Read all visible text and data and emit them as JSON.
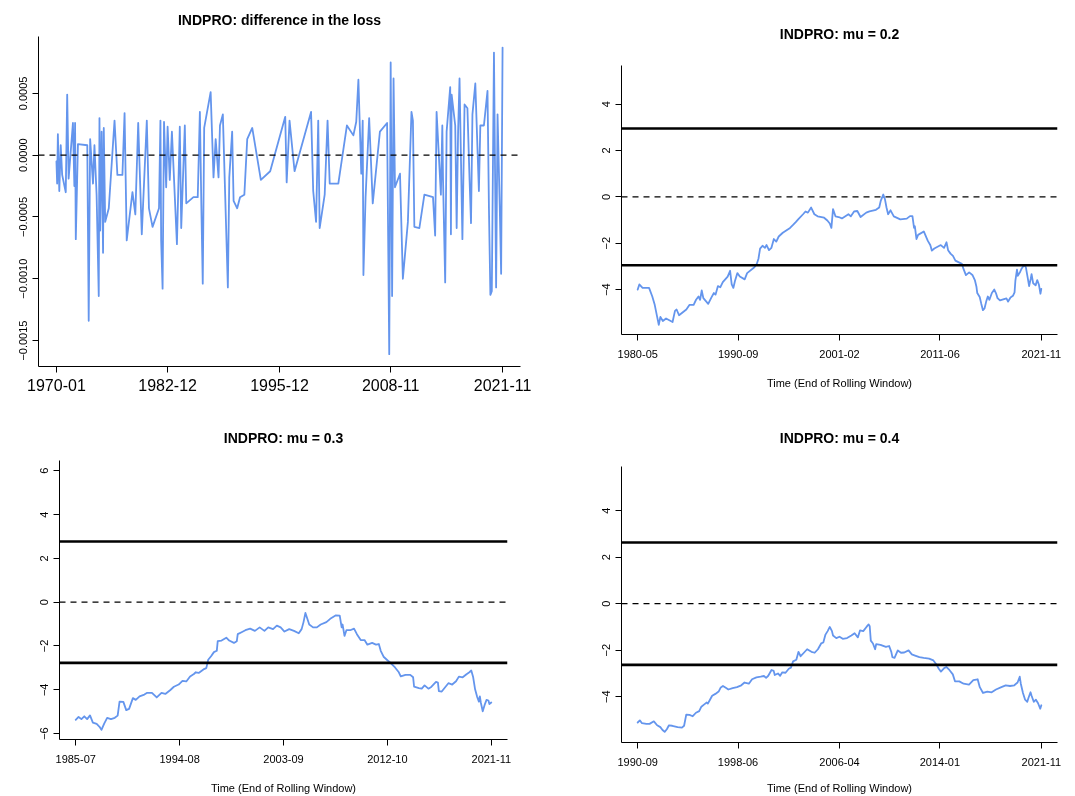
{
  "chart_data": [
    {
      "type": "line",
      "title": "INDPRO: difference in the loss",
      "color": "#6495ed",
      "x": [
        "1970-01",
        "1970-02",
        "1970-03",
        "1970-05",
        "1970-07",
        "1970-09",
        "1971-02",
        "1971-04",
        "1971-06",
        "1971-12",
        "1972-02",
        "1972-03",
        "1972-04",
        "1972-07",
        "1973-08",
        "1973-10",
        "1973-12",
        "1974-04",
        "1974-06",
        "1974-09",
        "1974-12",
        "1975-01",
        "1975-02",
        "1975-04",
        "1975-06",
        "1975-07",
        "1975-09",
        "1976-02",
        "1976-10",
        "1977-02",
        "1977-09",
        "1977-12",
        "1978-03",
        "1978-11",
        "1979-03",
        "1979-07",
        "1979-12",
        "1980-07",
        "1980-10",
        "1981-03",
        "1981-12",
        "1982-02",
        "1982-03",
        "1982-05",
        "1982-07",
        "1982-10",
        "1982-12",
        "1983-03",
        "1983-06",
        "1984-01",
        "1984-05",
        "1984-07",
        "1984-12",
        "1985-02",
        "1985-12",
        "1986-06",
        "1986-09",
        "1986-11",
        "1987-01",
        "1987-03",
        "1987-12",
        "1988-04",
        "1988-07",
        "1988-11",
        "1989-01",
        "1989-05",
        "1989-12",
        "1990-02",
        "1990-06",
        "1990-08",
        "1991-01",
        "1991-05",
        "1991-11",
        "1992-03",
        "1992-10",
        "1993-10",
        "1994-11",
        "1996-08",
        "1996-10",
        "1997-02",
        "1997-09",
        "1999-08",
        "1999-11",
        "2000-03",
        "2000-06",
        "2000-08",
        "2001-03",
        "2001-07",
        "2001-10",
        "2002-10",
        "2003-10",
        "2004-07",
        "2004-11",
        "2005-02",
        "2005-06",
        "2005-08",
        "2005-09",
        "2005-12",
        "2006-05",
        "2006-10",
        "2007-08",
        "2008-06",
        "2008-09",
        "2008-11",
        "2009-01",
        "2009-03",
        "2009-05",
        "2009-12",
        "2010-04",
        "2010-11",
        "2011-04",
        "2011-06",
        "2011-08",
        "2012-03",
        "2012-10",
        "2013-10",
        "2014-01",
        "2014-03",
        "2014-09",
        "2014-11",
        "2014-12",
        "2015-03",
        "2015-05",
        "2015-10",
        "2015-11",
        "2015-12",
        "2016-05",
        "2016-07",
        "2016-09",
        "2016-11",
        "2017-03",
        "2017-06",
        "2017-10",
        "2018-01",
        "2018-03",
        "2018-05",
        "2018-09",
        "2019-02",
        "2019-04",
        "2019-09",
        "2020-02",
        "2020-04",
        "2020-06",
        "2020-08",
        "2020-11",
        "2021-02",
        "2021-04",
        "2021-07",
        "2021-09",
        "2021-11"
      ],
      "values": [
        -5e-05,
        -0.00023,
        0.00017,
        -0.00029,
        8e-05,
        -0.00016,
        -0.0003,
        0.00049,
        -0.00019,
        0.00026,
        -0.00025,
        0.00026,
        -0.00068,
        9e-05,
        8e-05,
        -0.00134,
        0.00013,
        -0.00023,
        8e-05,
        -0.00032,
        -0.00114,
        0.0003,
        -0.00061,
        0.00019,
        -0.00079,
        0.00022,
        -0.00054,
        -0.00043,
        0.00028,
        -0.00016,
        -0.00016,
        0.00034,
        -0.00069,
        -0.0003,
        -0.00048,
        0.00026,
        -0.00064,
        0.00028,
        -0.00043,
        -0.00058,
        -0.00043,
        0.00028,
        -0.00069,
        -0.00108,
        0.00027,
        -0.00026,
        0.00023,
        -0.0002,
        0.00019,
        -0.00072,
        0.00023,
        -0.00059,
        0.00024,
        -0.00039,
        -0.00034,
        -0.00034,
        0.00035,
        -0.0004,
        -0.00104,
        0.00022,
        0.00051,
        -0.00018,
        0.00013,
        -0.00018,
        0.00024,
        0.00033,
        -0.00107,
        -0.00018,
        0.00019,
        -0.00037,
        -0.00043,
        -0.00034,
        -0.00032,
        0.00013,
        0.00022,
        -0.0002,
        -0.00013,
        0.00031,
        -0.00022,
        0.00028,
        -0.00013,
        0.00035,
        -0.00029,
        -0.00054,
        0.00028,
        -0.00059,
        -0.00032,
        0.00028,
        -0.00023,
        -0.00023,
        0.00024,
        0.00016,
        0.00027,
        0.00061,
        -0.00015,
        0.00028,
        -0.00097,
        -0.00034,
        0.0003,
        -0.00039,
        0.00019,
        0.00026,
        -0.00161,
        0.00075,
        -0.00114,
        0.00062,
        -0.00026,
        -0.00015,
        -0.001,
        -0.00054,
        0.00035,
        0.00028,
        -0.00058,
        -0.00059,
        -0.00032,
        -0.00034,
        -0.00065,
        0.00035,
        -0.00032,
        0.00024,
        -0.0002,
        -0.00103,
        0.00019,
        0.00055,
        -0.00064,
        0.00049,
        0.00024,
        -0.00059,
        0.00019,
        0.00062,
        -0.00068,
        0.00041,
        0.00038,
        -0.0002,
        -0.00055,
        0.00033,
        0.00058,
        -0.00029,
        0.00024,
        0.00024,
        0.00052,
        -0.00043,
        -0.00113,
        -0.0011,
        0.00083,
        -0.00107,
        0.00033,
        -0.0004,
        -0.00096,
        0.00087
      ],
      "xlim": [
        "1967-12",
        "2023-12"
      ],
      "xticks": [
        "1970-01",
        "1982-12",
        "1995-12",
        "2008-11",
        "2021-11"
      ],
      "ylim": [
        -0.00171,
        0.00096
      ],
      "yticks": [
        {
          "value": 0.0005,
          "label": "0.0005"
        },
        {
          "value": 0,
          "label": "0.0000"
        },
        {
          "value": -0.0005,
          "label": "−0.0005"
        },
        {
          "value": -0.001,
          "label": "−0.0010"
        },
        {
          "value": -0.0015,
          "label": "−0.0015"
        }
      ],
      "ref_lines": [
        {
          "axis": "y",
          "value": 0,
          "line_style": "dashed",
          "color": "#000000"
        }
      ]
    },
    {
      "type": "line",
      "title": "INDPRO: mu = 0.2",
      "xlabel": "Time (End of Rolling Window)",
      "color": "#6495ed",
      "x": [
        "1980-05",
        "1980-07",
        "1980-11",
        "1981-07",
        "1981-11",
        "1982-02",
        "1982-05",
        "1982-07",
        "1982-09",
        "1982-12",
        "1983-04",
        "1983-12",
        "1984-03",
        "1984-05",
        "1984-08",
        "1985-05",
        "1985-09",
        "1986-02",
        "1986-05",
        "1986-08",
        "1986-10",
        "1986-12",
        "1987-02",
        "1987-08",
        "1987-12",
        "1988-03",
        "1988-05",
        "1988-08",
        "1988-11",
        "1989-02",
        "1989-08",
        "1989-11",
        "1990-01",
        "1990-03",
        "1990-05",
        "1990-08",
        "1990-11",
        "1991-05",
        "1991-08",
        "1992-05",
        "1992-08",
        "1992-10",
        "1992-12",
        "1993-03",
        "1993-06",
        "1993-08",
        "1993-11",
        "1994-02",
        "1994-05",
        "1994-08",
        "1994-11",
        "1995-04",
        "1996-01",
        "1996-05",
        "1996-08",
        "1996-11",
        "1997-05",
        "1997-08",
        "1997-11",
        "1998-03",
        "1998-07",
        "1998-11",
        "1999-07",
        "1999-11",
        "2000-02",
        "2000-04",
        "2000-06",
        "2000-09",
        "2001-01",
        "2001-05",
        "2002-01",
        "2002-04",
        "2002-08",
        "2002-12",
        "2003-04",
        "2003-11",
        "2004-03",
        "2004-11",
        "2005-03",
        "2005-05",
        "2005-08",
        "2005-10",
        "2005-12",
        "2006-02",
        "2006-05",
        "2006-09",
        "2007-05",
        "2008-01",
        "2008-05",
        "2008-08",
        "2008-10",
        "2008-11",
        "2009-01",
        "2009-03",
        "2009-10",
        "2010-03",
        "2010-06",
        "2010-08",
        "2010-11",
        "2011-07",
        "2011-11",
        "2012-02",
        "2012-04",
        "2012-07",
        "2012-10",
        "2013-01",
        "2013-09",
        "2013-11",
        "2014-02",
        "2014-06",
        "2014-10",
        "2015-01",
        "2015-03",
        "2015-04",
        "2015-07",
        "2015-09",
        "2015-11",
        "2016-01",
        "2016-03",
        "2016-05",
        "2016-07",
        "2016-10",
        "2017-01",
        "2017-03",
        "2017-05",
        "2017-08",
        "2018-04",
        "2018-06",
        "2018-09",
        "2018-12",
        "2019-02",
        "2019-03",
        "2019-05",
        "2019-06",
        "2019-09",
        "2019-11",
        "2020-02",
        "2020-04",
        "2020-06",
        "2020-08",
        "2020-10",
        "2020-11",
        "2021-01",
        "2021-04",
        "2021-06",
        "2021-08",
        "2021-10",
        "2021-11"
      ],
      "values": [
        -4.0,
        -3.78,
        -3.93,
        -3.93,
        -4.3,
        -4.66,
        -5.18,
        -5.52,
        -5.18,
        -5.36,
        -5.25,
        -5.4,
        -4.92,
        -4.86,
        -5.11,
        -4.86,
        -4.66,
        -4.66,
        -4.44,
        -4.3,
        -4.44,
        -4.04,
        -4.37,
        -4.62,
        -4.34,
        -4.15,
        -4.22,
        -3.85,
        -3.9,
        -3.68,
        -3.44,
        -3.19,
        -3.78,
        -3.93,
        -3.63,
        -3.29,
        -3.44,
        -3.56,
        -3.29,
        -3.04,
        -2.89,
        -2.67,
        -2.23,
        -2.11,
        -2.2,
        -2.08,
        -2.3,
        -2.2,
        -1.82,
        -1.93,
        -1.71,
        -1.55,
        -1.34,
        -1.2,
        -1.09,
        -0.97,
        -0.75,
        -0.63,
        -0.68,
        -0.46,
        -0.75,
        -0.84,
        -0.9,
        -1.02,
        -1.15,
        -1.34,
        -0.53,
        -0.84,
        -0.87,
        -0.93,
        -0.75,
        -0.84,
        -0.63,
        -0.61,
        -0.87,
        -0.68,
        -0.63,
        -0.56,
        -0.46,
        -0.16,
        0.1,
        -0.09,
        -0.46,
        -0.75,
        -0.58,
        -0.84,
        -0.97,
        -0.94,
        -0.83,
        -0.83,
        -1.34,
        -1.27,
        -1.82,
        -1.64,
        -1.49,
        -1.9,
        -2.08,
        -2.32,
        -2.23,
        -2.08,
        -2.2,
        -1.96,
        -2.3,
        -2.45,
        -2.55,
        -2.75,
        -2.89,
        -3.11,
        -3.38,
        -3.26,
        -3.37,
        -3.59,
        -3.88,
        -4.15,
        -4.32,
        -4.62,
        -4.89,
        -4.81,
        -4.52,
        -4.3,
        -4.44,
        -4.15,
        -4.0,
        -4.15,
        -4.37,
        -4.47,
        -4.38,
        -4.52,
        -4.34,
        -4.27,
        -4.12,
        -3.63,
        -3.14,
        -3.41,
        -3.23,
        -3.08,
        -2.94,
        -3.04,
        -3.44,
        -3.85,
        -3.53,
        -3.34,
        -3.73,
        -3.82,
        -3.59,
        -3.78,
        -4.18,
        -3.97
      ],
      "xlim": [
        "1978-09",
        "2023-07"
      ],
      "xticks": [
        "1980-05",
        "1990-09",
        "2001-02",
        "2011-06",
        "2021-11"
      ],
      "ylim": [
        -5.94,
        5.67
      ],
      "yticks": [
        -4,
        -2,
        0,
        2,
        4
      ],
      "ref_lines": [
        {
          "axis": "y",
          "value": 0,
          "line_style": "dashed",
          "color": "#000000"
        },
        {
          "axis": "y",
          "value": 2.95,
          "line_style": "solid",
          "color": "#000000"
        },
        {
          "axis": "y",
          "value": -2.95,
          "line_style": "solid",
          "color": "#000000"
        }
      ]
    },
    {
      "type": "line",
      "title": "INDPRO: mu = 0.3",
      "xlabel": "Time (End of Rolling Window)",
      "color": "#6495ed",
      "x": [
        "1985-07",
        "1985-10",
        "1986-01",
        "1986-04",
        "1986-07",
        "1986-10",
        "1987-01",
        "1987-05",
        "1987-08",
        "1987-10",
        "1988-01",
        "1988-04",
        "1988-08",
        "1988-12",
        "1989-03",
        "1989-05",
        "1989-09",
        "1989-12",
        "1990-03",
        "1990-07",
        "1990-10",
        "1991-02",
        "1991-07",
        "1991-10",
        "1992-03",
        "1992-08",
        "1993-01",
        "1993-05",
        "1993-10",
        "1994-02",
        "1994-07",
        "1994-11",
        "1995-03",
        "1995-07",
        "1995-11",
        "1996-01",
        "1996-04",
        "1996-09",
        "1996-12",
        "1997-02",
        "1997-05",
        "1997-08",
        "1997-11",
        "1997-12",
        "1998-04",
        "1998-09",
        "1998-12",
        "1999-05",
        "1999-08",
        "1999-09",
        "2000-01",
        "2000-05",
        "2000-10",
        "2001-03",
        "2001-08",
        "2002-01",
        "2002-05",
        "2002-10",
        "2003-02",
        "2003-06",
        "2003-10",
        "2004-03",
        "2004-08",
        "2005-01",
        "2005-04",
        "2005-06",
        "2005-08",
        "2005-10",
        "2005-12",
        "2006-04",
        "2006-08",
        "2006-12",
        "2007-06",
        "2007-10",
        "2008-04",
        "2008-08",
        "2008-10",
        "2008-11",
        "2009-01",
        "2009-03",
        "2009-07",
        "2009-11",
        "2010-02",
        "2010-06",
        "2010-10",
        "2011-01",
        "2011-06",
        "2011-10",
        "2012-01",
        "2012-03",
        "2012-06",
        "2012-10",
        "2013-02",
        "2013-06",
        "2013-10",
        "2013-12",
        "2014-05",
        "2014-10",
        "2015-01",
        "2015-02",
        "2015-07",
        "2015-10",
        "2016-01",
        "2016-05",
        "2016-08",
        "2017-01",
        "2017-03",
        "2017-04",
        "2017-07",
        "2017-11",
        "2018-02",
        "2018-06",
        "2018-10",
        "2019-01",
        "2019-05",
        "2019-09",
        "2019-12",
        "2020-02",
        "2020-04",
        "2020-06",
        "2020-08",
        "2020-10",
        "2020-11",
        "2020-12",
        "2021-02",
        "2021-04",
        "2021-06",
        "2021-08",
        "2021-09",
        "2021-11"
      ],
      "values": [
        -5.37,
        -5.24,
        -5.34,
        -5.21,
        -5.34,
        -5.17,
        -5.5,
        -5.56,
        -5.69,
        -5.83,
        -5.53,
        -5.28,
        -5.34,
        -5.28,
        -5.18,
        -4.54,
        -4.55,
        -4.93,
        -4.87,
        -4.38,
        -4.46,
        -4.3,
        -4.22,
        -4.14,
        -4.14,
        -4.35,
        -4.14,
        -4.19,
        -4.02,
        -3.86,
        -3.76,
        -3.59,
        -3.62,
        -3.39,
        -3.28,
        -3.2,
        -3.23,
        -3.07,
        -3.01,
        -2.63,
        -2.47,
        -2.28,
        -2.22,
        -1.78,
        -1.75,
        -1.62,
        -1.75,
        -1.86,
        -1.78,
        -1.46,
        -1.37,
        -1.28,
        -1.21,
        -1.31,
        -1.15,
        -1.31,
        -1.15,
        -1.23,
        -1.07,
        -1.15,
        -1.34,
        -1.23,
        -1.31,
        -1.42,
        -1.23,
        -0.91,
        -0.49,
        -0.76,
        -1.02,
        -1.15,
        -1.15,
        -1.02,
        -0.91,
        -0.76,
        -0.6,
        -0.61,
        -1.15,
        -1.02,
        -1.54,
        -1.28,
        -1.28,
        -1.21,
        -1.46,
        -1.73,
        -1.73,
        -1.94,
        -1.86,
        -1.94,
        -1.91,
        -2.22,
        -2.49,
        -2.65,
        -2.8,
        -2.98,
        -3.2,
        -3.39,
        -3.32,
        -3.32,
        -3.43,
        -3.86,
        -3.92,
        -3.95,
        -3.8,
        -3.95,
        -3.87,
        -3.64,
        -3.67,
        -4.06,
        -4.08,
        -3.86,
        -3.7,
        -3.76,
        -3.61,
        -3.4,
        -3.43,
        -3.29,
        -3.2,
        -3.12,
        -3.43,
        -3.98,
        -4.3,
        -4.54,
        -4.3,
        -4.58,
        -4.98,
        -4.69,
        -4.46,
        -4.49,
        -4.65,
        -4.58
      ],
      "xlim": [
        "1984-02",
        "2023-04"
      ],
      "xticks": [
        "1985-07",
        "1994-08",
        "2003-09",
        "2012-10",
        "2021-11"
      ],
      "ylim": [
        -6.27,
        6.47
      ],
      "yticks": [
        -6,
        -4,
        -2,
        0,
        2,
        4,
        6
      ],
      "ref_lines": [
        {
          "axis": "y",
          "value": 0,
          "line_style": "dashed",
          "color": "#000000"
        },
        {
          "axis": "y",
          "value": 2.77,
          "line_style": "solid",
          "color": "#000000"
        },
        {
          "axis": "y",
          "value": -2.77,
          "line_style": "solid",
          "color": "#000000"
        }
      ]
    },
    {
      "type": "line",
      "title": "INDPRO: mu = 0.4",
      "xlabel": "Time (End of Rolling Window)",
      "color": "#6495ed",
      "x": [
        "1990-09",
        "1990-11",
        "1991-01",
        "1991-05",
        "1991-08",
        "1991-12",
        "1992-03",
        "1992-06",
        "1992-08",
        "1992-10",
        "1992-12",
        "1993-02",
        "1993-05",
        "1993-10",
        "1994-02",
        "1994-04",
        "1994-06",
        "1994-09",
        "1994-12",
        "1995-03",
        "1995-06",
        "1995-08",
        "1995-11",
        "1996-01",
        "1996-02",
        "1996-04",
        "1996-06",
        "1996-09",
        "1996-12",
        "1997-02",
        "1997-04",
        "1997-07",
        "1997-09",
        "1998-01",
        "1998-05",
        "1998-09",
        "1998-12",
        "1999-04",
        "1999-07",
        "1999-11",
        "2000-03",
        "2000-06",
        "2000-08",
        "2000-10",
        "2001-01",
        "2001-03",
        "2001-04",
        "2001-07",
        "2001-09",
        "2001-11",
        "2002-02",
        "2002-05",
        "2002-07",
        "2002-09",
        "2002-12",
        "2003-02",
        "2003-04",
        "2003-07",
        "2003-10",
        "2004-02",
        "2004-05",
        "2004-08",
        "2004-11",
        "2005-01",
        "2005-03",
        "2005-05",
        "2005-07",
        "2005-09",
        "2005-10",
        "2006-01",
        "2006-04",
        "2006-07",
        "2006-11",
        "2007-03",
        "2007-06",
        "2007-09",
        "2007-11",
        "2008-02",
        "2008-05",
        "2008-07",
        "2008-08",
        "2008-09",
        "2008-11",
        "2009-01",
        "2009-02",
        "2009-06",
        "2009-11",
        "2010-02",
        "2010-04",
        "2010-05",
        "2010-07",
        "2010-10",
        "2011-01",
        "2011-04",
        "2011-08",
        "2011-11",
        "2012-02",
        "2012-06",
        "2012-10",
        "2013-03",
        "2013-07",
        "2013-10",
        "2013-12",
        "2014-02",
        "2014-05",
        "2014-07",
        "2014-10",
        "2015-01",
        "2015-03",
        "2015-07",
        "2015-11",
        "2016-04",
        "2016-08",
        "2016-12",
        "2017-02",
        "2017-05",
        "2017-09",
        "2018-01",
        "2018-05",
        "2018-10",
        "2019-02",
        "2019-06",
        "2019-10",
        "2020-01",
        "2020-03",
        "2020-04",
        "2020-06",
        "2020-08",
        "2020-10",
        "2020-11",
        "2021-01",
        "2021-02",
        "2021-04",
        "2021-06",
        "2021-08",
        "2021-10",
        "2021-11"
      ],
      "values": [
        -5.11,
        -5.02,
        -5.14,
        -5.17,
        -5.17,
        -5.06,
        -5.23,
        -5.31,
        -5.43,
        -5.51,
        -5.4,
        -5.23,
        -5.25,
        -5.31,
        -5.33,
        -5.25,
        -4.77,
        -4.78,
        -4.84,
        -4.69,
        -4.62,
        -4.43,
        -4.32,
        -4.25,
        -4.3,
        -4.13,
        -3.96,
        -3.88,
        -3.78,
        -3.6,
        -3.54,
        -3.63,
        -3.69,
        -3.63,
        -3.59,
        -3.51,
        -3.39,
        -3.44,
        -3.25,
        -3.17,
        -3.14,
        -3.11,
        -3.19,
        -3.1,
        -2.85,
        -2.89,
        -3.07,
        -3.0,
        -3.1,
        -2.95,
        -2.97,
        -2.8,
        -2.75,
        -2.48,
        -2.41,
        -2.07,
        -2.26,
        -2.11,
        -1.96,
        -2.07,
        -2.11,
        -1.96,
        -1.71,
        -1.67,
        -1.33,
        -1.18,
        -1.0,
        -1.18,
        -1.37,
        -1.48,
        -1.42,
        -1.51,
        -1.48,
        -1.37,
        -1.27,
        -1.45,
        -1.15,
        -1.18,
        -1.0,
        -0.89,
        -0.97,
        -1.59,
        -1.71,
        -1.96,
        -1.74,
        -1.77,
        -1.86,
        -1.82,
        -2.07,
        -2.3,
        -2.33,
        -2.01,
        -2.11,
        -2.1,
        -2.01,
        -2.18,
        -2.23,
        -2.3,
        -2.33,
        -2.36,
        -2.44,
        -2.63,
        -2.8,
        -2.92,
        -2.77,
        -2.72,
        -2.86,
        -3.04,
        -3.34,
        -3.34,
        -3.44,
        -3.48,
        -3.29,
        -3.25,
        -3.59,
        -3.84,
        -3.78,
        -3.81,
        -3.69,
        -3.59,
        -3.51,
        -3.54,
        -3.51,
        -3.39,
        -3.14,
        -3.44,
        -3.84,
        -4.13,
        -4.22,
        -4.07,
        -3.81,
        -3.96,
        -4.22,
        -4.13,
        -4.28,
        -4.52,
        -4.37
      ],
      "xlim": [
        "1989-06",
        "2023-02"
      ],
      "xticks": [
        "1990-09",
        "1998-06",
        "2006-04",
        "2014-01",
        "2021-11"
      ],
      "ylim": [
        -5.97,
        5.9
      ],
      "yticks": [
        -4,
        -2,
        0,
        2,
        4
      ],
      "ref_lines": [
        {
          "axis": "y",
          "value": 0,
          "line_style": "dashed",
          "color": "#000000"
        },
        {
          "axis": "y",
          "value": 2.63,
          "line_style": "solid",
          "color": "#000000"
        },
        {
          "axis": "y",
          "value": -2.63,
          "line_style": "solid",
          "color": "#000000"
        }
      ]
    }
  ]
}
